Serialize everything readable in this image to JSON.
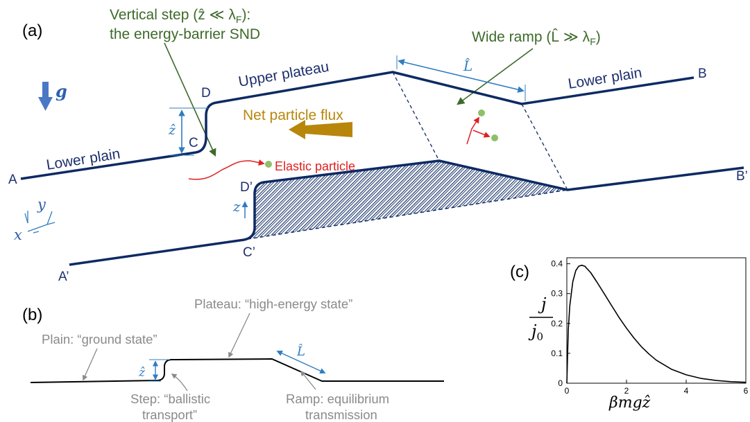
{
  "panel_a": {
    "label": "(a)",
    "callout_step": {
      "line1": "Vertical step (ẑ ≪ λ",
      "line1_sub": "F",
      "line1_end": "):",
      "line2": "the energy-barrier SND"
    },
    "callout_ramp": {
      "text": "Wide ramp (L̂ ≫ λ",
      "sub": "F",
      "end": ")"
    },
    "upper_plateau": "Upper plateau",
    "lower_plain_right": "Lower plain",
    "lower_plain_left": "Lower plain",
    "net_flux": "Net particle flux",
    "elastic_particle": "Elastic particle",
    "gravity": "g",
    "height_symbol": "ẑ",
    "length_symbol": "L̂",
    "z_axis": "z",
    "y_axis": "y",
    "x_axis": "x",
    "points": {
      "A": "A",
      "B": "B",
      "C": "C",
      "D": "D",
      "A_prime": "A’",
      "B_prime": "B’",
      "C_prime": "C’",
      "D_prime": "D’"
    },
    "colors": {
      "surface": "#0e2a63",
      "flux_arrow": "#b8860b",
      "particle_path": "#e02020",
      "particle": "#8fbf6a",
      "dim": "#2f7cc0",
      "callout": "#3d6a2a"
    }
  },
  "panel_b": {
    "label": "(b)",
    "plateau_label": "Plateau: “high-energy state”",
    "plain_label": "Plain: “ground state”",
    "step_label_1": "Step: “ballistic",
    "step_label_2": "transport”",
    "ramp_label_1": "Ramp: equilibrium",
    "ramp_label_2": "transmission",
    "height_symbol": "ẑ",
    "length_symbol": "L̂"
  },
  "panel_c": {
    "label": "(c)",
    "chart_data": {
      "type": "line",
      "ylabel_num": "j",
      "ylabel_den": "j",
      "ylabel_den_sub": "0",
      "xlabel": "βmgẑ",
      "xlim": [
        0,
        6
      ],
      "ylim": [
        0,
        0.42
      ],
      "xticks": [
        "0",
        "2",
        "4",
        "6"
      ],
      "yticks": [
        "0",
        "0.1",
        "0.2",
        "0.3",
        "0.4"
      ],
      "series": [
        {
          "x": [
            0,
            0.05,
            0.1,
            0.2,
            0.3,
            0.4,
            0.5,
            0.6,
            0.8,
            1.0,
            1.25,
            1.5,
            1.75,
            2.0,
            2.25,
            2.5,
            2.75,
            3.0,
            3.5,
            4.0,
            4.5,
            5.0,
            5.5,
            6.0
          ],
          "y": [
            0,
            0.18,
            0.26,
            0.34,
            0.377,
            0.392,
            0.395,
            0.392,
            0.37,
            0.34,
            0.3,
            0.26,
            0.22,
            0.184,
            0.151,
            0.122,
            0.098,
            0.077,
            0.047,
            0.028,
            0.016,
            0.009,
            0.005,
            0.003
          ]
        }
      ],
      "color": "#000000"
    }
  }
}
